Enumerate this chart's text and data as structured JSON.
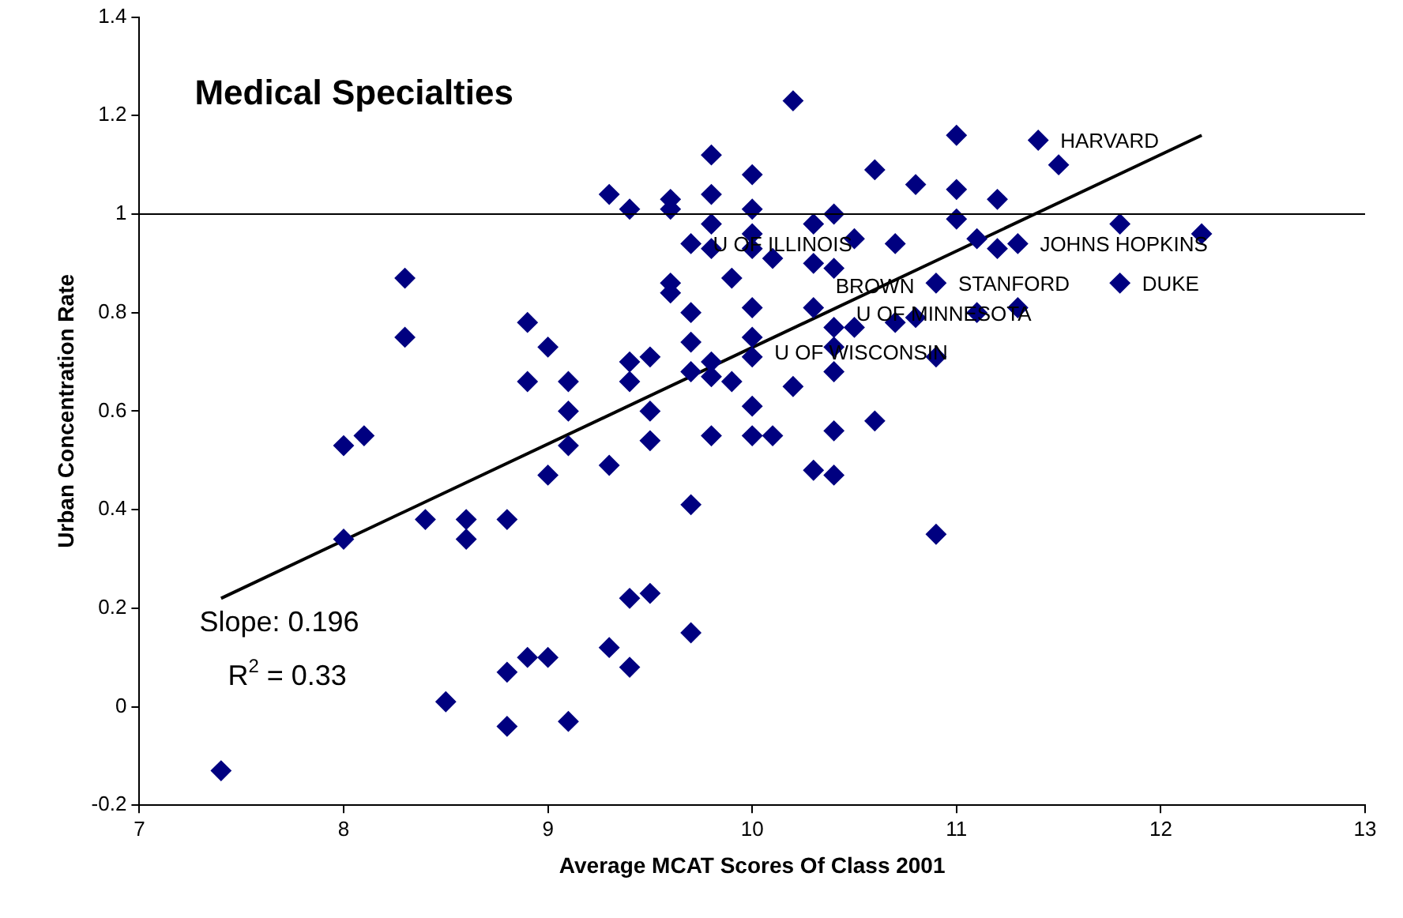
{
  "chart_data": {
    "type": "scatter",
    "title": "Medical Specialties",
    "xlabel": "Average MCAT Scores Of Class 2001",
    "ylabel": "Urban Concentration Rate",
    "xlim": [
      7,
      13
    ],
    "xticks": [
      7,
      8,
      9,
      10,
      11,
      12,
      13
    ],
    "ylim": [
      -0.2,
      1.4
    ],
    "yticks": [
      -0.2,
      0,
      0.2,
      0.4,
      0.6,
      0.8,
      1,
      1.2,
      1.4
    ],
    "series": [
      {
        "color": "#000080",
        "marker": "diamond",
        "x": [
          7.4,
          8.0,
          8.0,
          8.1,
          8.3,
          8.3,
          8.4,
          8.5,
          8.6,
          8.6,
          8.8,
          8.8,
          8.8,
          8.9,
          8.9,
          8.9,
          9.0,
          9.0,
          9.0,
          9.1,
          9.1,
          9.1,
          9.1,
          9.3,
          9.3,
          9.3,
          9.4,
          9.4,
          9.4,
          9.4,
          9.4,
          9.5,
          9.5,
          9.5,
          9.5,
          9.6,
          9.6,
          9.6,
          9.6,
          9.7,
          9.7,
          9.7,
          9.7,
          9.7,
          9.7,
          9.8,
          9.8,
          9.8,
          9.8,
          9.8,
          9.8,
          9.8,
          9.9,
          9.9,
          10.0,
          10.0,
          10.0,
          10.0,
          10.0,
          10.0,
          10.0,
          10.0,
          10.0,
          10.1,
          10.1,
          10.2,
          10.2,
          10.3,
          10.3,
          10.3,
          10.3,
          10.4,
          10.4,
          10.4,
          10.4,
          10.4,
          10.4,
          10.4,
          10.5,
          10.5,
          10.6,
          10.6,
          10.7,
          10.7,
          10.8,
          10.8,
          10.9,
          10.9,
          10.9,
          11.0,
          11.0,
          11.0,
          11.1,
          11.1,
          11.2,
          11.2,
          11.3,
          11.3,
          11.4,
          11.5,
          11.8,
          11.8,
          12.2
        ],
        "values": [
          -0.13,
          0.53,
          0.34,
          0.55,
          0.87,
          0.75,
          0.38,
          0.01,
          0.38,
          0.34,
          0.38,
          0.07,
          -0.04,
          0.78,
          0.66,
          0.1,
          0.73,
          0.47,
          0.1,
          0.66,
          0.6,
          0.53,
          -0.03,
          1.04,
          0.49,
          0.12,
          1.01,
          0.7,
          0.66,
          0.22,
          0.08,
          0.71,
          0.6,
          0.54,
          0.23,
          1.03,
          1.01,
          0.86,
          0.84,
          0.94,
          0.8,
          0.74,
          0.68,
          0.41,
          0.15,
          1.12,
          1.04,
          0.98,
          0.93,
          0.7,
          0.67,
          0.55,
          0.87,
          0.66,
          1.08,
          1.01,
          0.96,
          0.93,
          0.81,
          0.75,
          0.71,
          0.61,
          0.55,
          0.91,
          0.55,
          1.23,
          0.65,
          0.98,
          0.9,
          0.81,
          0.48,
          1.0,
          0.89,
          0.77,
          0.73,
          0.68,
          0.56,
          0.47,
          0.95,
          0.77,
          1.09,
          0.58,
          0.94,
          0.78,
          1.06,
          0.79,
          0.86,
          0.71,
          0.35,
          1.16,
          1.05,
          0.99,
          0.95,
          0.8,
          1.03,
          0.93,
          0.94,
          0.81,
          1.15,
          1.1,
          0.98,
          0.86,
          0.96
        ]
      },
      {
        "type": "line",
        "color": "#000000",
        "line_style": "solid",
        "x": [
          7.4,
          12.2
        ],
        "values": [
          0.22,
          1.16
        ]
      }
    ],
    "ref_lines": [
      {
        "axis": "y",
        "value": 1,
        "color": "#000000"
      }
    ],
    "annotations": [
      {
        "text": "HARVARD",
        "x": 11.4,
        "y": 1.15
      },
      {
        "text": "U OF ILLINOIS",
        "x": 9.7,
        "y": 0.94
      },
      {
        "text": "BROWN",
        "x": 10.3,
        "y": 0.9
      },
      {
        "text": "U OF MINNESOTA",
        "x": 10.4,
        "y": 0.89
      },
      {
        "text": "U OF WISCONSIN",
        "x": 10.0,
        "y": 0.81
      },
      {
        "text": "STANFORD",
        "x": 10.9,
        "y": 0.86
      },
      {
        "text": "JOHNS HOPKINS",
        "x": 11.3,
        "y": 0.94
      },
      {
        "text": "DUKE",
        "x": 11.8,
        "y": 0.86
      },
      "Slope: 0.196",
      "R$^{2}$ = 0.33"
    ]
  }
}
